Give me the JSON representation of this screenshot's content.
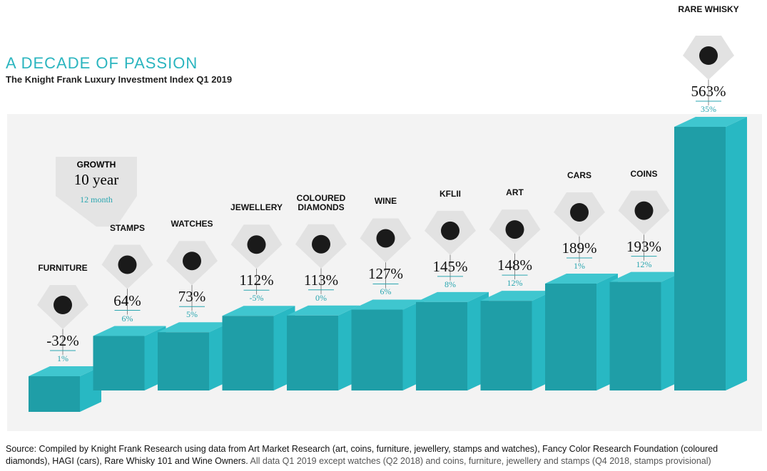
{
  "chart_data": {
    "type": "bar",
    "title": "A DECADE OF PASSION",
    "subtitle": "The Knight Frank Luxury Investment Index Q1 2019",
    "legend_title": "GROWTH",
    "categories": [
      "FURNITURE",
      "STAMPS",
      "WATCHES",
      "JEWELLERY",
      "COLOURED DIAMONDS",
      "WINE",
      "KFLII",
      "ART",
      "CARS",
      "COINS",
      "RARE WHISKY"
    ],
    "series": [
      {
        "name": "10 year",
        "color": "#1f9ea7",
        "values": [
          -32,
          64,
          73,
          112,
          113,
          127,
          145,
          148,
          189,
          193,
          563
        ],
        "value_labels": [
          "-32%",
          "64%",
          "73%",
          "112%",
          "113%",
          "127%",
          "145%",
          "148%",
          "189%",
          "193%",
          "563%"
        ]
      },
      {
        "name": "12 month",
        "color": "#2aa6b0",
        "values": [
          1,
          6,
          5,
          -5,
          0,
          6,
          8,
          12,
          1,
          12,
          35
        ],
        "value_labels": [
          "1%",
          "6%",
          "5%",
          "-5%",
          "0%",
          "6%",
          "8%",
          "12%",
          "1%",
          "12%",
          "35%"
        ]
      }
    ],
    "source": "Source: Compiled by Knight Frank Research using data from Art Market Research (art, coins, furniture, jewellery, stamps and watches), Fancy Color Research Foundation (coloured diamonds), HAGI (cars), Rare Whisky 101 and Wine Owners.",
    "note": "All data Q1 2019 except watches (Q2 2018) and coins, furniture, jewellery and stamps (Q4 2018, stamps provisional)"
  }
}
